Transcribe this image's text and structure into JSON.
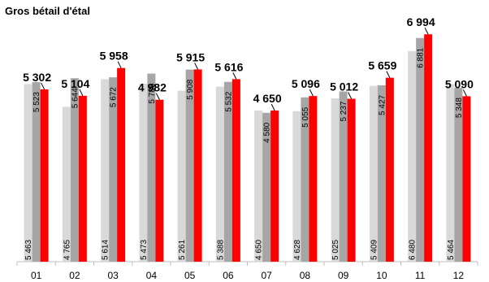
{
  "chart_data": {
    "type": "bar",
    "title": "Gros bétail d'étal",
    "xlabel": "",
    "ylabel": "",
    "categories": [
      "01",
      "02",
      "03",
      "04",
      "05",
      "06",
      "07",
      "08",
      "09",
      "10",
      "11",
      "12"
    ],
    "series": [
      {
        "values": [
          5463,
          4765,
          5614,
          5473,
          5261,
          5388,
          4650,
          4628,
          5025,
          5409,
          6480,
          5464
        ]
      },
      {
        "values": [
          5523,
          5644,
          5672,
          5786,
          5908,
          5532,
          4580,
          5055,
          5237,
          5427,
          6881,
          5348
        ]
      },
      {
        "values": [
          5302,
          5104,
          5958,
          4982,
          5915,
          5616,
          4650,
          5096,
          5012,
          5659,
          6994,
          5090
        ]
      }
    ],
    "value_labels": [
      [
        "5 463",
        "4 765",
        "5 614",
        "5 473",
        "5 261",
        "5 388",
        "4 650",
        "4 628",
        "5 025",
        "5 409",
        "6 480",
        "5 464"
      ],
      [
        "5 523",
        "5 644",
        "5 672",
        "5 786",
        "5 908",
        "5 532",
        "4 580",
        "5 055",
        "5 237",
        "5 427",
        "6 881",
        "5 348"
      ],
      [
        "5 302",
        "5 104",
        "5 958",
        "4 982",
        "5 915",
        "5 616",
        "4 650",
        "5 096",
        "5 012",
        "5 659",
        "6 994",
        "5 090"
      ]
    ],
    "colors": [
      "#d9d9d9",
      "#a6a6a6",
      "#ff0000"
    ],
    "ylim": [
      0,
      7000
    ],
    "grid": false,
    "legend": "none"
  }
}
